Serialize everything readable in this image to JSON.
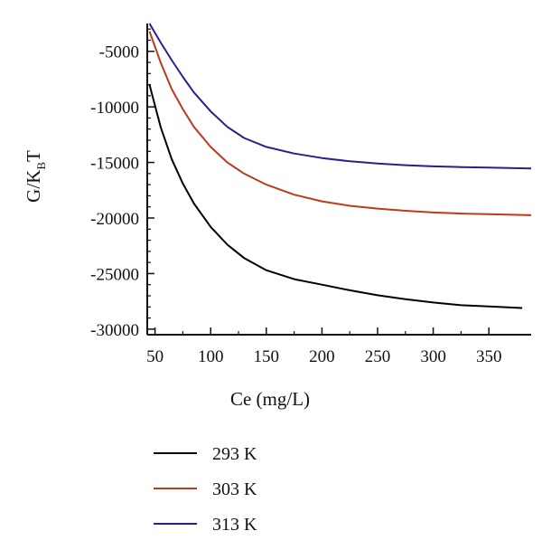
{
  "chart_data": {
    "type": "line",
    "title": "",
    "xlabel": "Ce (mg/L)",
    "ylabel": {
      "main": "G/K",
      "subscript": "B",
      "suffix": "T"
    },
    "xlim": [
      43,
      388
    ],
    "ylim": [
      -30500,
      -2500
    ],
    "xticks": [
      50,
      100,
      150,
      200,
      250,
      300,
      350
    ],
    "yticks": [
      -5000,
      -10000,
      -15000,
      -20000,
      -25000,
      -30000
    ],
    "grid": false,
    "legend_position": "bottom-left, below plot",
    "series": [
      {
        "name": "293 K",
        "color": "#000000",
        "x": [
          45,
          55,
          65,
          75,
          85,
          100,
          115,
          130,
          150,
          175,
          200,
          225,
          250,
          275,
          300,
          325,
          350,
          380
        ],
        "y": [
          -8000,
          -11800,
          -14700,
          -16900,
          -18700,
          -20800,
          -22400,
          -23600,
          -24700,
          -25500,
          -26000,
          -26500,
          -26950,
          -27300,
          -27600,
          -27850,
          -27950,
          -28100
        ]
      },
      {
        "name": "303 K",
        "color": "#c0391b",
        "x": [
          45,
          55,
          65,
          75,
          85,
          100,
          115,
          130,
          150,
          175,
          200,
          225,
          250,
          275,
          300,
          325,
          350,
          388
        ],
        "y": [
          -3200,
          -6000,
          -8400,
          -10200,
          -11800,
          -13600,
          -15000,
          -16000,
          -17000,
          -17900,
          -18500,
          -18900,
          -19150,
          -19350,
          -19500,
          -19600,
          -19650,
          -19750
        ]
      },
      {
        "name": "313 K",
        "color": "#2b1f8c",
        "x": [
          45,
          55,
          65,
          75,
          85,
          100,
          115,
          130,
          150,
          175,
          200,
          225,
          250,
          275,
          300,
          325,
          350,
          388
        ],
        "y": [
          -2500,
          -4200,
          -5800,
          -7300,
          -8700,
          -10400,
          -11800,
          -12800,
          -13600,
          -14200,
          -14600,
          -14900,
          -15100,
          -15250,
          -15350,
          -15420,
          -15470,
          -15550
        ]
      }
    ]
  }
}
